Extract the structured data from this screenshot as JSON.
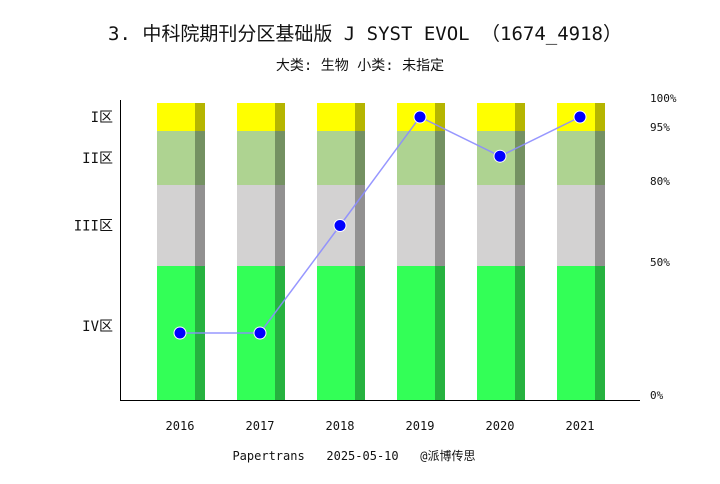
{
  "chart_data": {
    "type": "bar+line",
    "title": "3. 中科院期刊分区基础版 J SYST EVOL （1674_4918）",
    "subtitle": "大类: 生物 小类: 未指定",
    "categories": [
      "2016",
      "2017",
      "2018",
      "2019",
      "2020",
      "2021"
    ],
    "bands": [
      {
        "label": "IV区",
        "from": 0,
        "to": 50,
        "color": "#33ff57",
        "shade": "#26b23f"
      },
      {
        "label": "III区",
        "from": 50,
        "to": 80,
        "color": "#d3d2d2",
        "shade": "#929191"
      },
      {
        "label": "II区",
        "from": 80,
        "to": 95,
        "color": "#aed391",
        "shade": "#749162"
      },
      {
        "label": "I区",
        "from": 95,
        "to": 100,
        "color": "#ffff00",
        "shade": "#b5b500"
      }
    ],
    "right_ticks": [
      "0%",
      "50%",
      "80%",
      "95%",
      "100%"
    ],
    "series": [
      {
        "values": [
          25,
          25,
          65,
          97.5,
          88,
          97.5
        ],
        "color": "#0000ff",
        "line_color": "#8c8cff"
      }
    ],
    "ylim": [
      0,
      100
    ],
    "grid": false
  },
  "footer": "Papertrans   2025-05-10   @派博传思"
}
